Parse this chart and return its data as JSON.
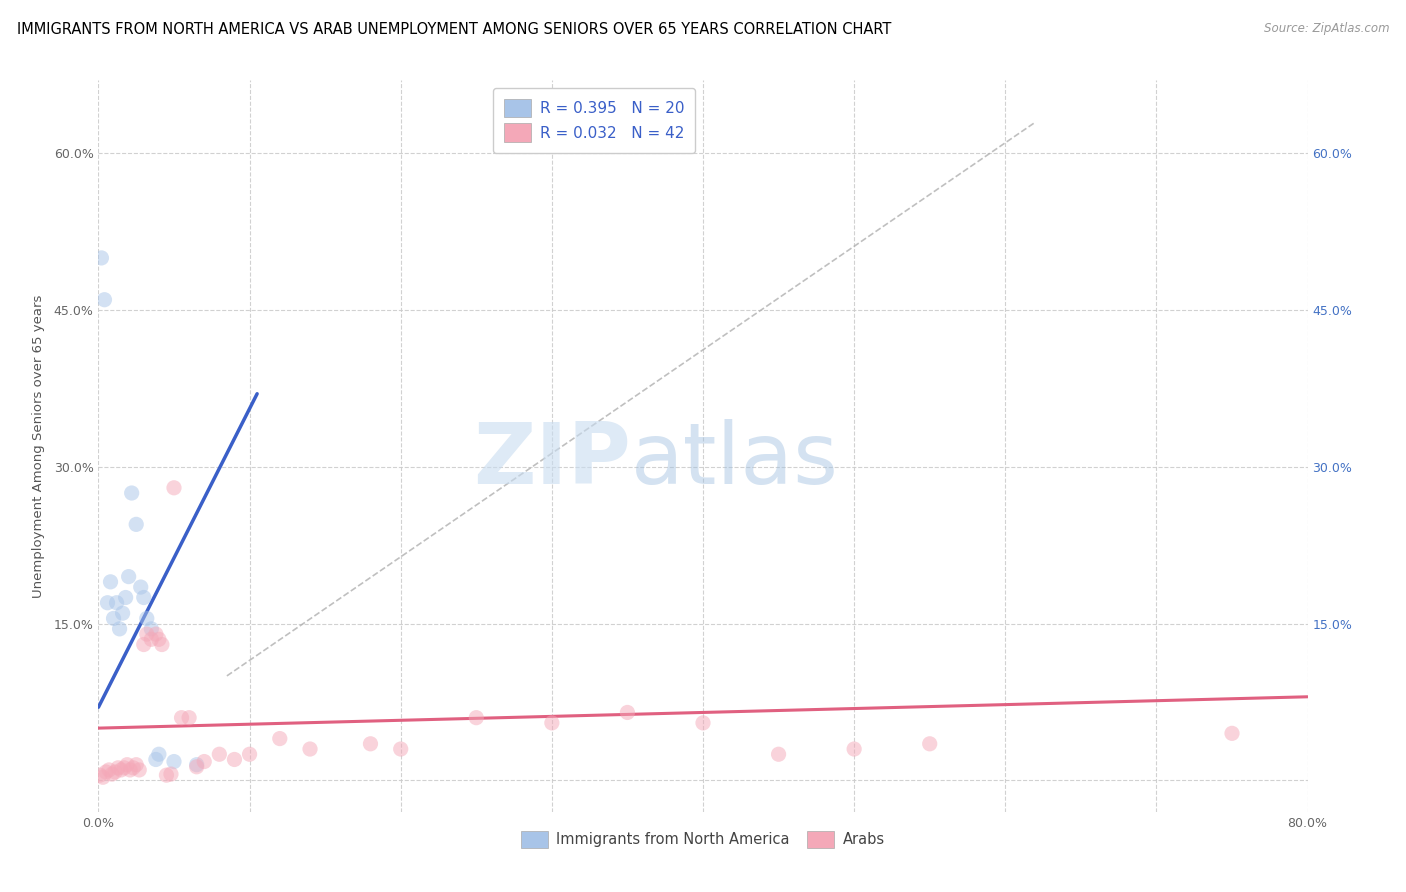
{
  "title": "IMMIGRANTS FROM NORTH AMERICA VS ARAB UNEMPLOYMENT AMONG SENIORS OVER 65 YEARS CORRELATION CHART",
  "source": "Source: ZipAtlas.com",
  "ylabel": "Unemployment Among Seniors over 65 years",
  "xlim": [
    0.0,
    0.8
  ],
  "ylim": [
    -0.03,
    0.67
  ],
  "xticks": [
    0.0,
    0.1,
    0.2,
    0.3,
    0.4,
    0.5,
    0.6,
    0.7,
    0.8
  ],
  "xticklabels": [
    "0.0%",
    "",
    "",
    "",
    "",
    "",
    "",
    "",
    "80.0%"
  ],
  "yticks": [
    0.0,
    0.15,
    0.3,
    0.45,
    0.6
  ],
  "ytick_labels_left": [
    "",
    "15.0%",
    "30.0%",
    "45.0%",
    "60.0%"
  ],
  "ytick_labels_right": [
    "",
    "15.0%",
    "30.0%",
    "45.0%",
    "60.0%"
  ],
  "watermark_zip": "ZIP",
  "watermark_atlas": "atlas",
  "blue_scatter_x": [
    0.002,
    0.004,
    0.006,
    0.008,
    0.01,
    0.012,
    0.014,
    0.016,
    0.018,
    0.02,
    0.022,
    0.025,
    0.028,
    0.03,
    0.032,
    0.035,
    0.038,
    0.04,
    0.05,
    0.065
  ],
  "blue_scatter_y": [
    0.5,
    0.46,
    0.17,
    0.19,
    0.155,
    0.17,
    0.145,
    0.16,
    0.175,
    0.195,
    0.275,
    0.245,
    0.185,
    0.175,
    0.155,
    0.145,
    0.02,
    0.025,
    0.018,
    0.015
  ],
  "pink_scatter_x": [
    0.001,
    0.003,
    0.005,
    0.007,
    0.009,
    0.011,
    0.013,
    0.015,
    0.017,
    0.019,
    0.021,
    0.023,
    0.025,
    0.027,
    0.03,
    0.032,
    0.035,
    0.038,
    0.04,
    0.042,
    0.045,
    0.048,
    0.05,
    0.055,
    0.06,
    0.065,
    0.07,
    0.08,
    0.09,
    0.1,
    0.12,
    0.14,
    0.18,
    0.2,
    0.25,
    0.3,
    0.35,
    0.4,
    0.45,
    0.5,
    0.55,
    0.75
  ],
  "pink_scatter_y": [
    0.005,
    0.003,
    0.008,
    0.01,
    0.006,
    0.008,
    0.012,
    0.01,
    0.012,
    0.015,
    0.01,
    0.012,
    0.015,
    0.01,
    0.13,
    0.14,
    0.135,
    0.14,
    0.135,
    0.13,
    0.005,
    0.006,
    0.28,
    0.06,
    0.06,
    0.013,
    0.018,
    0.025,
    0.02,
    0.025,
    0.04,
    0.03,
    0.035,
    0.03,
    0.06,
    0.055,
    0.065,
    0.055,
    0.025,
    0.03,
    0.035,
    0.045
  ],
  "blue_line_x": [
    0.0,
    0.105
  ],
  "blue_line_y": [
    0.07,
    0.37
  ],
  "pink_line_x": [
    0.0,
    0.8
  ],
  "pink_line_y": [
    0.05,
    0.08
  ],
  "diagonal_line_x": [
    0.085,
    0.62
  ],
  "diagonal_line_y": [
    0.1,
    0.63
  ],
  "scatter_size": 120,
  "scatter_alpha": 0.5,
  "blue_color": "#a8c4e8",
  "pink_color": "#f4a8b8",
  "blue_line_color": "#3a5fc8",
  "pink_line_color": "#e06080",
  "diagonal_color": "#b0b0b0",
  "grid_color": "#cccccc",
  "right_tick_color": "#4472c4",
  "title_fontsize": 10.5,
  "axis_label_fontsize": 9.5,
  "tick_fontsize": 9
}
